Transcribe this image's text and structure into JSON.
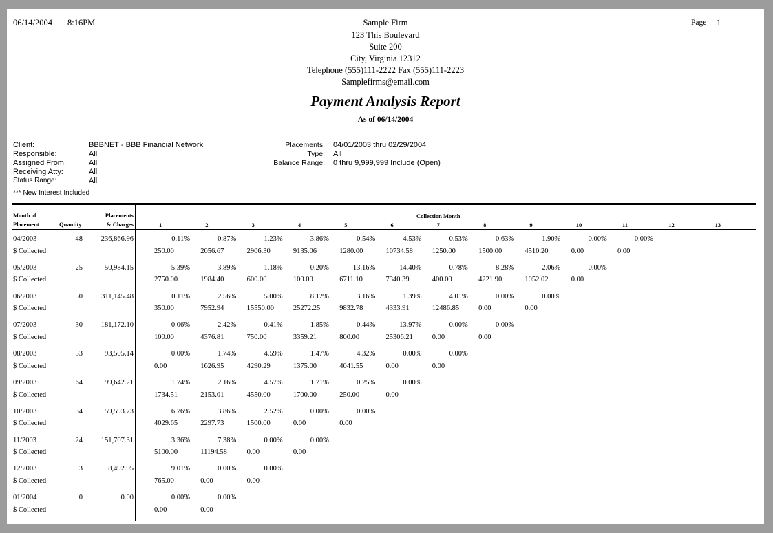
{
  "header": {
    "date": "06/14/2004",
    "time": "8:16PM",
    "page_label": "Page",
    "page_number": "1",
    "firm_name": "Sample Firm",
    "address1": "123 This Boulevard",
    "address2": "Suite 200",
    "city": "City, Virginia 12312",
    "phone": "Telephone (555)111-2222  Fax (555)111-2223",
    "email": "Samplefirms@email.com",
    "title": "Payment Analysis Report",
    "as_of": "As of 06/14/2004"
  },
  "filters": {
    "left": [
      {
        "label": "Client:",
        "value": "BBBNET - BBB Financial Network"
      },
      {
        "label": "Responsible:",
        "value": "All"
      },
      {
        "label": "Assigned From:",
        "value": "All"
      },
      {
        "label": "Receiving Atty:",
        "value": "All"
      },
      {
        "label": "Status Range:",
        "value": "All"
      }
    ],
    "right": [
      {
        "label": "Placements:",
        "value": "04/01/2003 thru 02/29/2004"
      },
      {
        "label": "Type:",
        "value": "All"
      },
      {
        "label": "Balance Range:",
        "value": "0 thru 9,999,999 Include  (Open)"
      }
    ],
    "note": "*** New Interest Included"
  },
  "table": {
    "col_month": [
      "Month of",
      "Placement"
    ],
    "col_quantity": "Quantity",
    "col_placements": [
      "Placements",
      "& Charges"
    ],
    "collection_month_label": "Collection Month",
    "collection_months": [
      "1",
      "2",
      "3",
      "4",
      "5",
      "6",
      "7",
      "8",
      "9",
      "10",
      "11",
      "12",
      "13"
    ],
    "collected_label": "$ Collected",
    "rows": [
      {
        "month": "04/2003",
        "quantity": "48",
        "placements": "236,866.96",
        "pct": [
          "0.11%",
          "0.87%",
          "1.23%",
          "3.86%",
          "0.54%",
          "4.53%",
          "0.53%",
          "0.63%",
          "1.90%",
          "0.00%",
          "0.00%"
        ],
        "collected": [
          "250.00",
          "2056.67",
          "2906.30",
          "9135.06",
          "1280.00",
          "10734.58",
          "1250.00",
          "1500.00",
          "4510.20",
          "0.00",
          "0.00"
        ]
      },
      {
        "month": "05/2003",
        "quantity": "25",
        "placements": "50,984.15",
        "pct": [
          "5.39%",
          "3.89%",
          "1.18%",
          "0.20%",
          "13.16%",
          "14.40%",
          "0.78%",
          "8.28%",
          "2.06%",
          "0.00%"
        ],
        "collected": [
          "2750.00",
          "1984.40",
          "600.00",
          "100.00",
          "6711.10",
          "7340.39",
          "400.00",
          "4221.90",
          "1052.02",
          "0.00"
        ]
      },
      {
        "month": "06/2003",
        "quantity": "50",
        "placements": "311,145.48",
        "pct": [
          "0.11%",
          "2.56%",
          "5.00%",
          "8.12%",
          "3.16%",
          "1.39%",
          "4.01%",
          "0.00%",
          "0.00%"
        ],
        "collected": [
          "350.00",
          "7952.94",
          "15550.00",
          "25272.25",
          "9832.78",
          "4333.91",
          "12486.85",
          "0.00",
          "0.00"
        ]
      },
      {
        "month": "07/2003",
        "quantity": "30",
        "placements": "181,172.10",
        "pct": [
          "0.06%",
          "2.42%",
          "0.41%",
          "1.85%",
          "0.44%",
          "13.97%",
          "0.00%",
          "0.00%"
        ],
        "collected": [
          "100.00",
          "4376.81",
          "750.00",
          "3359.21",
          "800.00",
          "25306.21",
          "0.00",
          "0.00"
        ]
      },
      {
        "month": "08/2003",
        "quantity": "53",
        "placements": "93,505.14",
        "pct": [
          "0.00%",
          "1.74%",
          "4.59%",
          "1.47%",
          "4.32%",
          "0.00%",
          "0.00%"
        ],
        "collected": [
          "0.00",
          "1626.95",
          "4290.29",
          "1375.00",
          "4041.55",
          "0.00",
          "0.00"
        ]
      },
      {
        "month": "09/2003",
        "quantity": "64",
        "placements": "99,642.21",
        "pct": [
          "1.74%",
          "2.16%",
          "4.57%",
          "1.71%",
          "0.25%",
          "0.00%"
        ],
        "collected": [
          "1734.51",
          "2153.01",
          "4550.00",
          "1700.00",
          "250.00",
          "0.00"
        ]
      },
      {
        "month": "10/2003",
        "quantity": "34",
        "placements": "59,593.73",
        "pct": [
          "6.76%",
          "3.86%",
          "2.52%",
          "0.00%",
          "0.00%"
        ],
        "collected": [
          "4029.65",
          "2297.73",
          "1500.00",
          "0.00",
          "0.00"
        ]
      },
      {
        "month": "11/2003",
        "quantity": "24",
        "placements": "151,707.31",
        "pct": [
          "3.36%",
          "7.38%",
          "0.00%",
          "0.00%"
        ],
        "collected": [
          "5100.00",
          "11194.58",
          "0.00",
          "0.00"
        ]
      },
      {
        "month": "12/2003",
        "quantity": "3",
        "placements": "8,492.95",
        "pct": [
          "9.01%",
          "0.00%",
          "0.00%"
        ],
        "collected": [
          "765.00",
          "0.00",
          "0.00"
        ]
      },
      {
        "month": "01/2004",
        "quantity": "0",
        "placements": "0.00",
        "pct": [
          "0.00%",
          "0.00%"
        ],
        "collected": [
          "0.00",
          "0.00"
        ]
      }
    ]
  }
}
